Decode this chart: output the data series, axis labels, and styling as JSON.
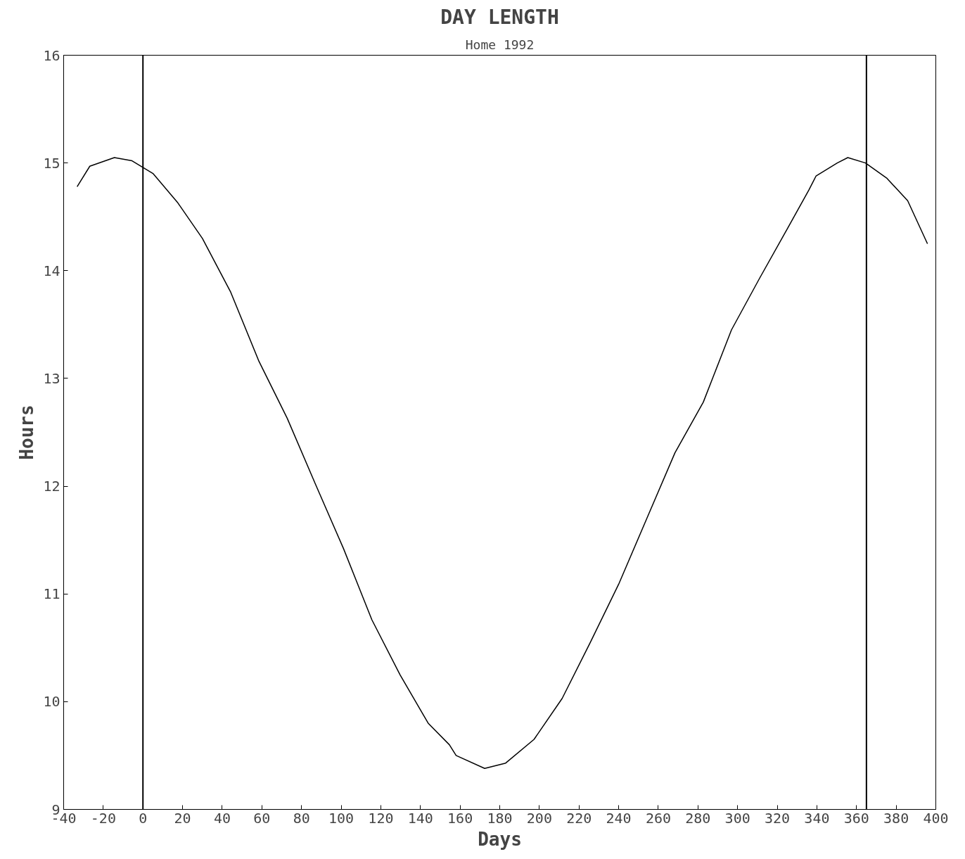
{
  "chart_data": {
    "type": "line",
    "title": "DAY LENGTH",
    "subtitle": "Home 1992",
    "xlabel": "Days",
    "ylabel": "Hours",
    "xlim": [
      -40,
      400
    ],
    "ylim": [
      9,
      16
    ],
    "xticks": [
      -40,
      -20,
      0,
      20,
      40,
      60,
      80,
      100,
      120,
      140,
      160,
      180,
      200,
      220,
      240,
      260,
      280,
      300,
      320,
      340,
      360,
      380,
      400
    ],
    "yticks": [
      9,
      10,
      11,
      12,
      13,
      14,
      15,
      16
    ],
    "grid": false,
    "marker": "none",
    "line_style": "solid",
    "ref_lines": [
      {
        "axis": "x",
        "value": 0,
        "color": "#000000"
      },
      {
        "axis": "x",
        "value": 365,
        "color": "#000000"
      }
    ],
    "series": [
      {
        "color": "#000000",
        "x": [
          -33.2,
          -26.8,
          -14.4,
          -5.5,
          5.2,
          17.6,
          30,
          44.3,
          58.5,
          72.8,
          87,
          101.2,
          115.5,
          129.7,
          143.9,
          154.6,
          158,
          172.4,
          183,
          197.3,
          211.5,
          225.7,
          240,
          254.2,
          268.4,
          282.7,
          296.9,
          311.1,
          325.4,
          336,
          339.6,
          350.3,
          355.6,
          364.5,
          375.2,
          385.8,
          395.8
        ],
        "values": [
          14.78,
          14.97,
          15.05,
          15.02,
          14.9,
          14.63,
          14.3,
          13.8,
          13.16,
          12.63,
          12.02,
          11.42,
          10.76,
          10.25,
          9.8,
          9.6,
          9.5,
          9.38,
          9.43,
          9.65,
          10.03,
          10.55,
          11.09,
          11.7,
          12.31,
          12.78,
          13.45,
          13.93,
          14.4,
          14.75,
          14.88,
          15.0,
          15.05,
          15.0,
          14.86,
          14.65,
          14.25
        ]
      }
    ]
  }
}
